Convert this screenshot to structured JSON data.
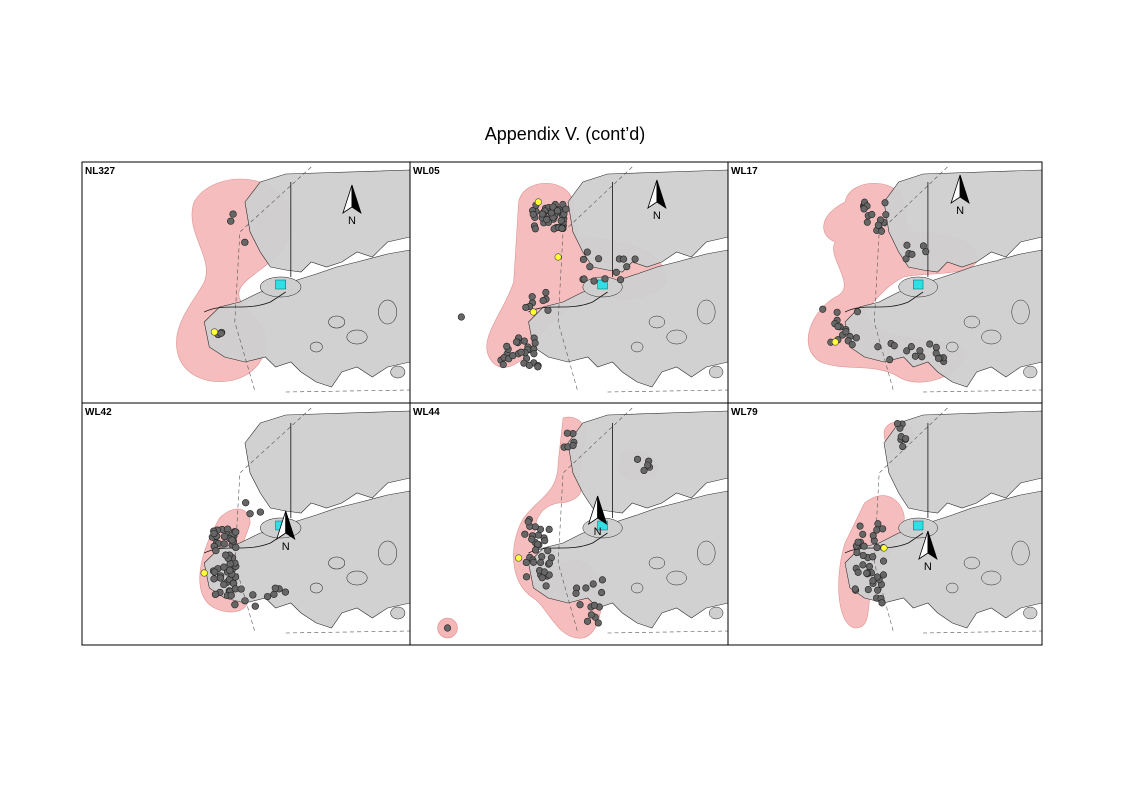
{
  "title": "Appendix V.  (cont’d)",
  "north_label": "N",
  "panels": [
    {
      "label": "NL327"
    },
    {
      "label": "WL05"
    },
    {
      "label": "WL17"
    },
    {
      "label": "WL42"
    },
    {
      "label": "WL44"
    },
    {
      "label": "WL79"
    }
  ]
}
